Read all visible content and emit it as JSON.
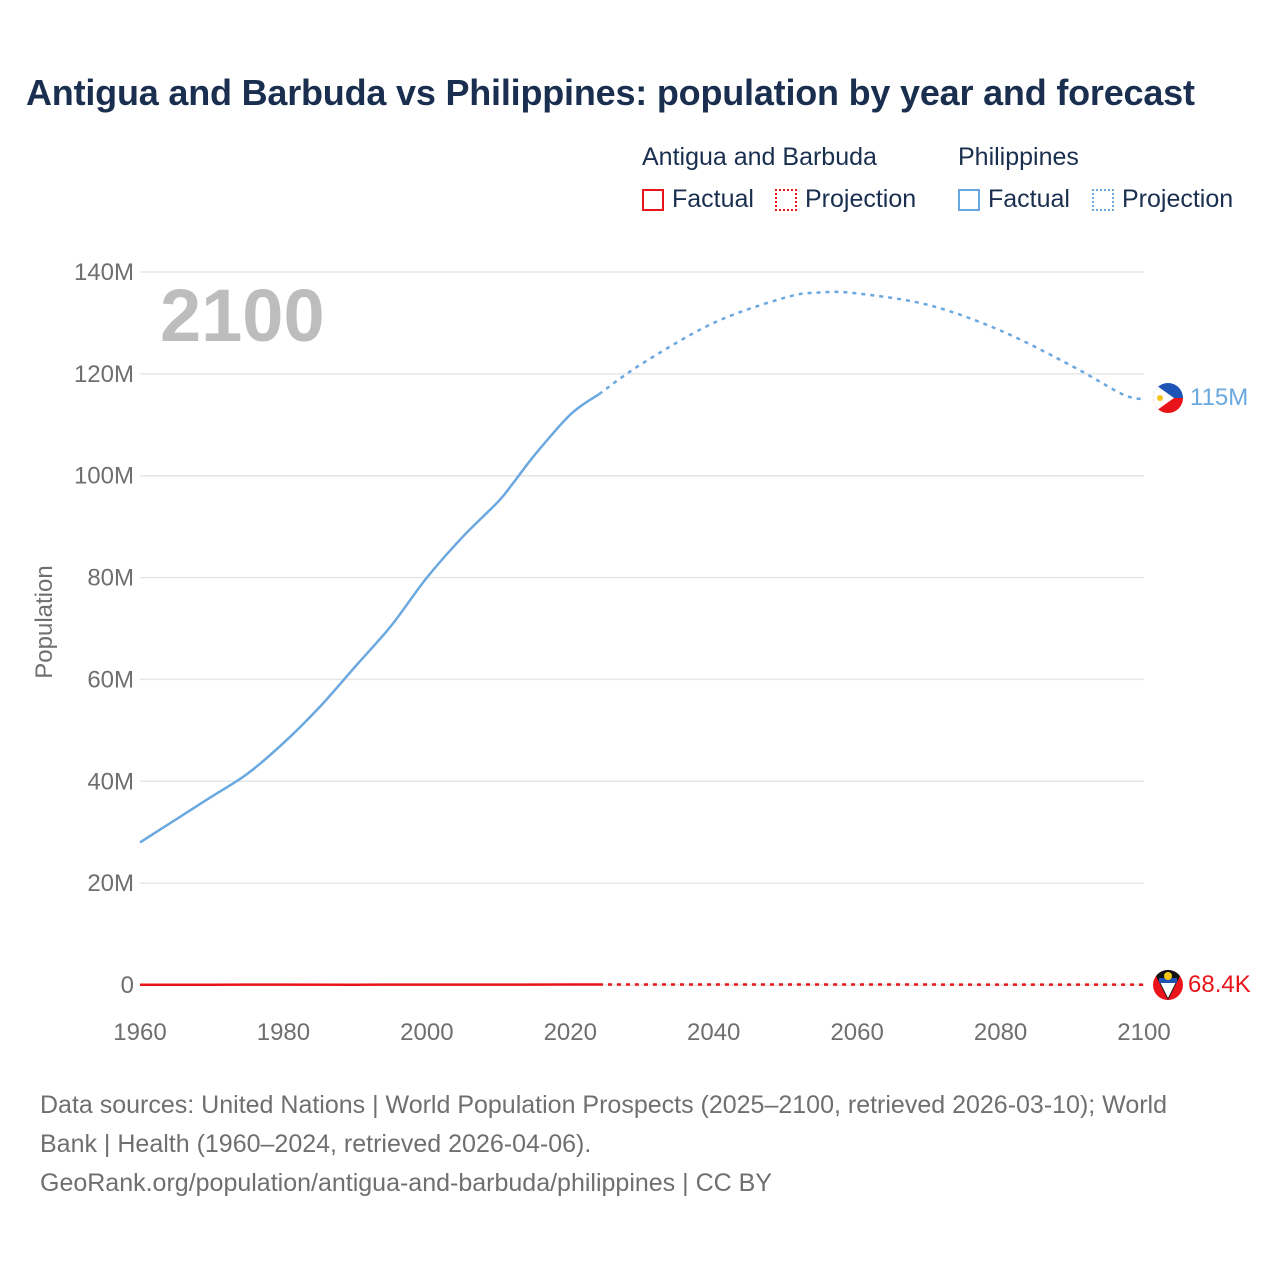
{
  "chart_data": {
    "type": "line",
    "title": "Antigua and Barbuda vs Philippines: population by year and forecast",
    "year_label": "2100",
    "ylabel": "Population",
    "xlabel": "",
    "xlim": [
      1960,
      2100
    ],
    "ylim": [
      0,
      140000000
    ],
    "x_ticks": [
      1960,
      1980,
      2000,
      2020,
      2040,
      2060,
      2080,
      2100
    ],
    "x_tick_labels": [
      "1960",
      "1980",
      "2000",
      "2020",
      "2040",
      "2060",
      "2080",
      "2100"
    ],
    "y_ticks": [
      0,
      20000000,
      40000000,
      60000000,
      80000000,
      100000000,
      120000000,
      140000000
    ],
    "y_tick_labels": [
      "0",
      "20M",
      "40M",
      "60M",
      "80M",
      "100M",
      "120M",
      "140M"
    ],
    "legend": {
      "groups": [
        {
          "name": "Antigua and Barbuda",
          "factual": "Factual",
          "projection": "Projection"
        },
        {
          "name": "Philippines",
          "factual": "Factual",
          "projection": "Projection"
        }
      ],
      "placement": "top-right"
    },
    "series": [
      {
        "name": "Antigua and Barbuda",
        "color": "#e8141a",
        "end_label": "68.4K",
        "factual": {
          "x": [
            1960,
            1970,
            1980,
            1990,
            2000,
            2010,
            2020,
            2024
          ],
          "y": [
            54000,
            65000,
            69000,
            62000,
            76000,
            85000,
            92000,
            94000
          ]
        },
        "projection": {
          "x": [
            2024,
            2040,
            2060,
            2080,
            2100
          ],
          "y": [
            94000,
            97000,
            92000,
            80000,
            68400
          ]
        }
      },
      {
        "name": "Philippines",
        "color": "#6aa8e0",
        "end_label": "115M",
        "factual": {
          "x": [
            1960,
            1965,
            1970,
            1975,
            1980,
            1985,
            1990,
            1995,
            2000,
            2005,
            2010,
            2012,
            2015,
            2020,
            2024
          ],
          "y": [
            28000000,
            32500000,
            37000000,
            41500000,
            47500000,
            54500000,
            62500000,
            70500000,
            80000000,
            88000000,
            95000000,
            98500000,
            104000000,
            112000000,
            116000000
          ]
        },
        "projection": {
          "x": [
            2024,
            2030,
            2040,
            2050,
            2055,
            2060,
            2070,
            2080,
            2090,
            2097,
            2100
          ],
          "y": [
            116000000,
            122000000,
            130000000,
            135000000,
            136000000,
            135800000,
            133500000,
            128500000,
            121500000,
            116000000,
            115000000
          ]
        }
      }
    ],
    "colors": {
      "grid": "#e6e6e6",
      "axis_text": "#6f6f6f",
      "title": "#1a2f4f",
      "year_label": "#bdbdbd"
    }
  },
  "footer": {
    "line1": "Data sources: United Nations | World Population Prospects (2025–2100, retrieved 2026-03-10); World",
    "line2": "Bank | Health (1960–2024, retrieved 2026-04-06).",
    "line3": "GeoRank.org/population/antigua-and-barbuda/philippines | CC BY"
  }
}
